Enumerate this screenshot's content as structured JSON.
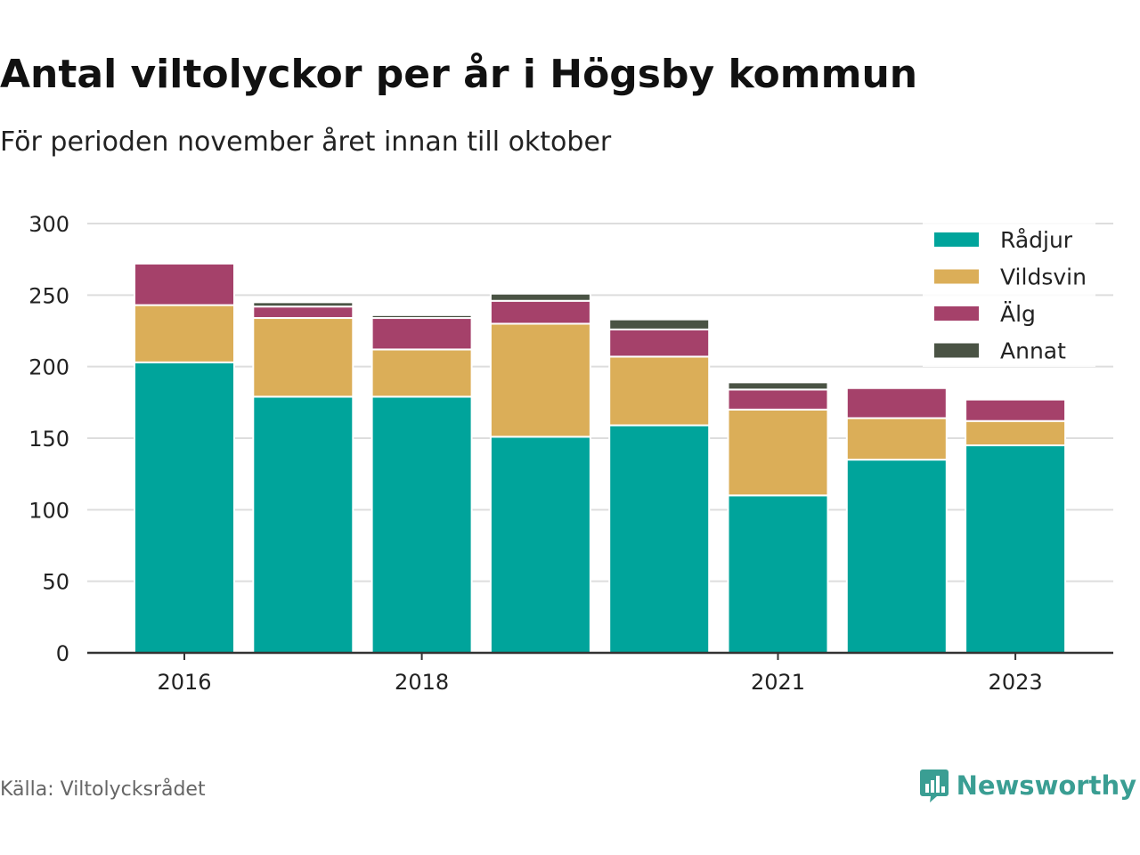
{
  "title": "Antal viltolyckor per år i Högsby kommun",
  "subtitle": "För perioden november året innan till oktober",
  "source": "Källa: Viltolycksrådet",
  "brand": {
    "name": "Newsworthy",
    "icon": "bar-chart-speech-bubble-icon",
    "color": "#3a9e93"
  },
  "chart_data": {
    "type": "bar",
    "stacked": true,
    "x": [
      2016,
      2017,
      2018,
      2019,
      2020,
      2021,
      2022,
      2023
    ],
    "x_tick_labels": [
      "2016",
      "",
      "2018",
      "",
      "",
      "2021",
      "",
      "2023"
    ],
    "ylim": [
      0,
      300
    ],
    "y_ticks": [
      0,
      50,
      100,
      150,
      200,
      250,
      300
    ],
    "grid": true,
    "legend_position": "top-right",
    "series": [
      {
        "name": "Rådjur",
        "color": "#00a49b",
        "values": [
          203,
          179,
          179,
          151,
          159,
          110,
          135,
          145
        ]
      },
      {
        "name": "Vildsvin",
        "color": "#dbae58",
        "values": [
          40,
          55,
          33,
          79,
          48,
          60,
          29,
          17
        ]
      },
      {
        "name": "Älg",
        "color": "#a5416a",
        "values": [
          29,
          8,
          22,
          16,
          19,
          14,
          21,
          15
        ]
      },
      {
        "name": "Annat",
        "color": "#4a5344",
        "values": [
          1,
          3,
          2,
          5,
          7,
          5,
          0,
          0
        ]
      }
    ]
  }
}
